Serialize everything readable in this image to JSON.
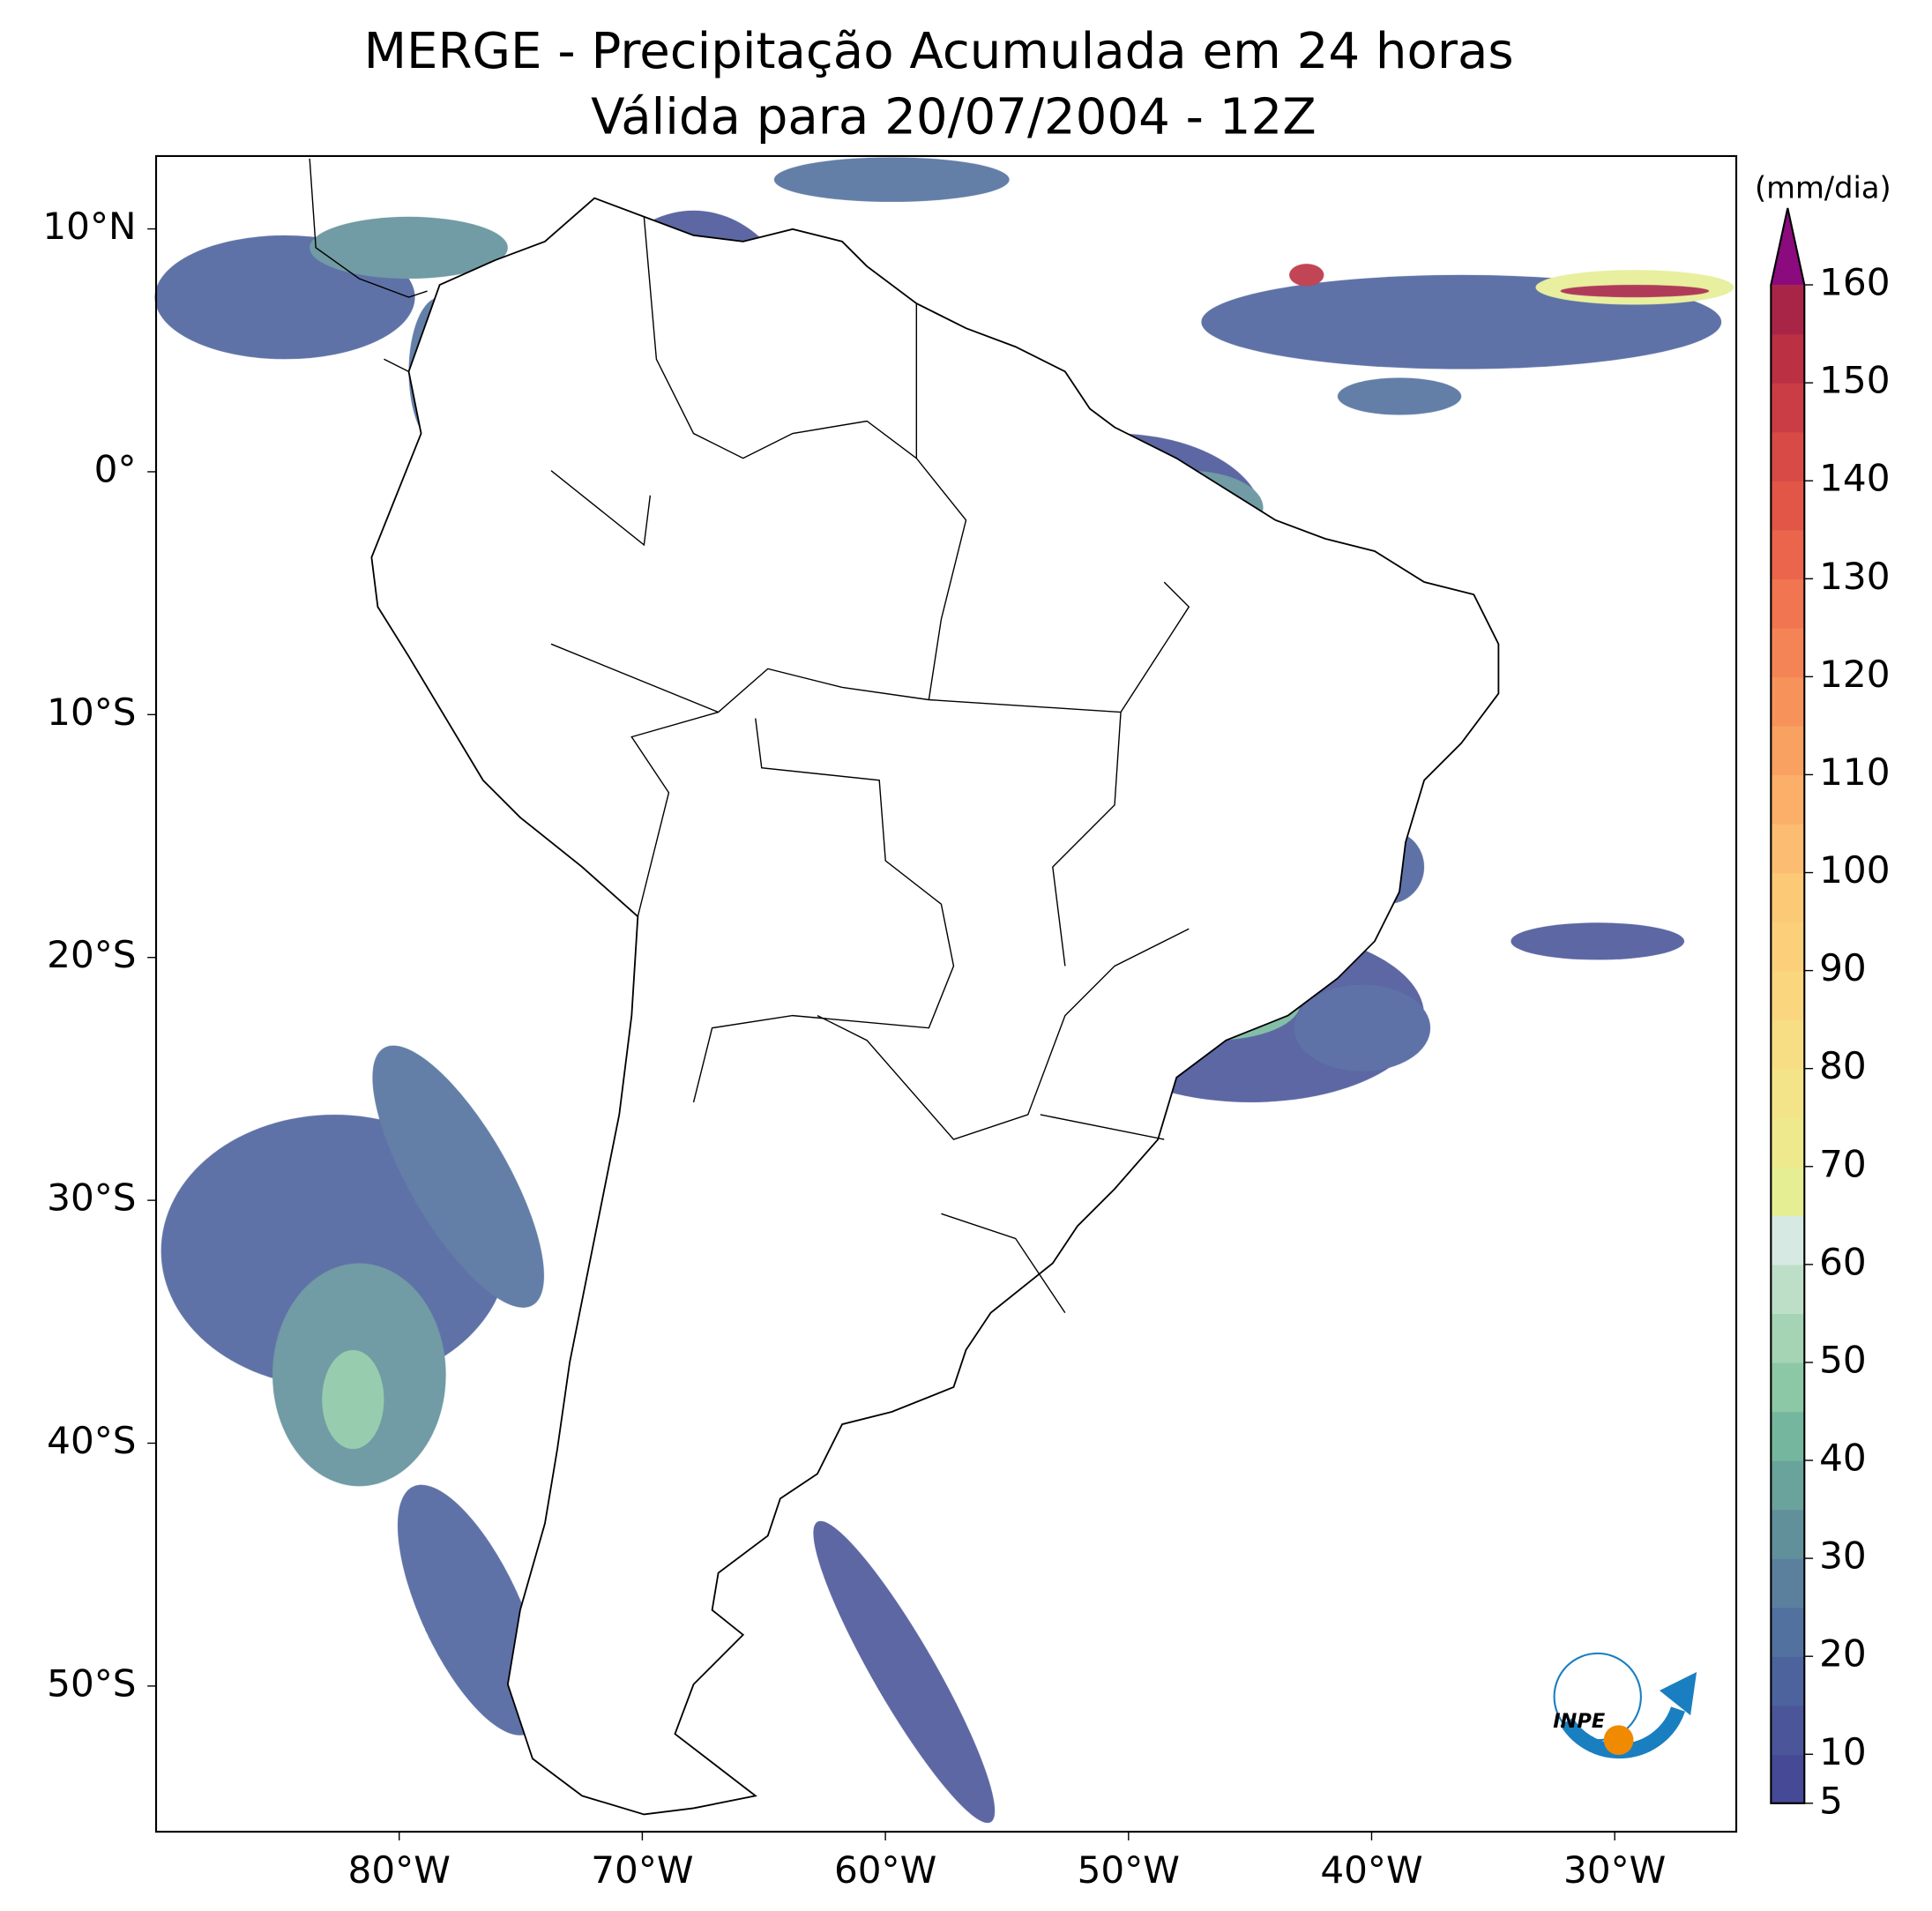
{
  "title": [
    "MERGE - Precipitação Acumulada em 24 horas",
    "Válida para 20/07/2004 - 12Z"
  ],
  "map": {
    "xlim": [
      -90,
      -25
    ],
    "ylim": [
      -56,
      13
    ],
    "xticks": [
      {
        "value": -80,
        "label": "80°W"
      },
      {
        "value": -70,
        "label": "70°W"
      },
      {
        "value": -60,
        "label": "60°W"
      },
      {
        "value": -50,
        "label": "50°W"
      },
      {
        "value": -40,
        "label": "40°W"
      },
      {
        "value": -30,
        "label": "30°W"
      }
    ],
    "yticks": [
      {
        "value": 10,
        "label": "10°N"
      },
      {
        "value": 0,
        "label": "0°"
      },
      {
        "value": -10,
        "label": "10°S"
      },
      {
        "value": -20,
        "label": "20°S"
      },
      {
        "value": -30,
        "label": "30°S"
      },
      {
        "value": -40,
        "label": "40°S"
      },
      {
        "value": -50,
        "label": "50°S"
      }
    ]
  },
  "colorbar": {
    "label": "(mm/dia)",
    "clim": [
      5,
      160
    ],
    "ticks": [
      5,
      10,
      20,
      30,
      40,
      50,
      60,
      70,
      80,
      90,
      100,
      110,
      120,
      130,
      140,
      150,
      160
    ],
    "colors": [
      "#464996",
      "#4a5699",
      "#4d639d",
      "#52719f",
      "#5a809e",
      "#61909b",
      "#6aa39b",
      "#75b79e",
      "#8cc8a5",
      "#a4d4b4",
      "#bddfc8",
      "#d6e9e2",
      "#e6ee94",
      "#eee98c",
      "#f4e489",
      "#f7dd84",
      "#fad67f",
      "#fcd07b",
      "#fcc976",
      "#fcbd72",
      "#fbaf69",
      "#f9a161",
      "#f7935a",
      "#f48455",
      "#f07550",
      "#ea654b",
      "#e25648",
      "#d84a46",
      "#cb3d44",
      "#bb3043",
      "#a82547"
    ],
    "extend_color": "#8b0a7e"
  },
  "logo": "INPE"
}
